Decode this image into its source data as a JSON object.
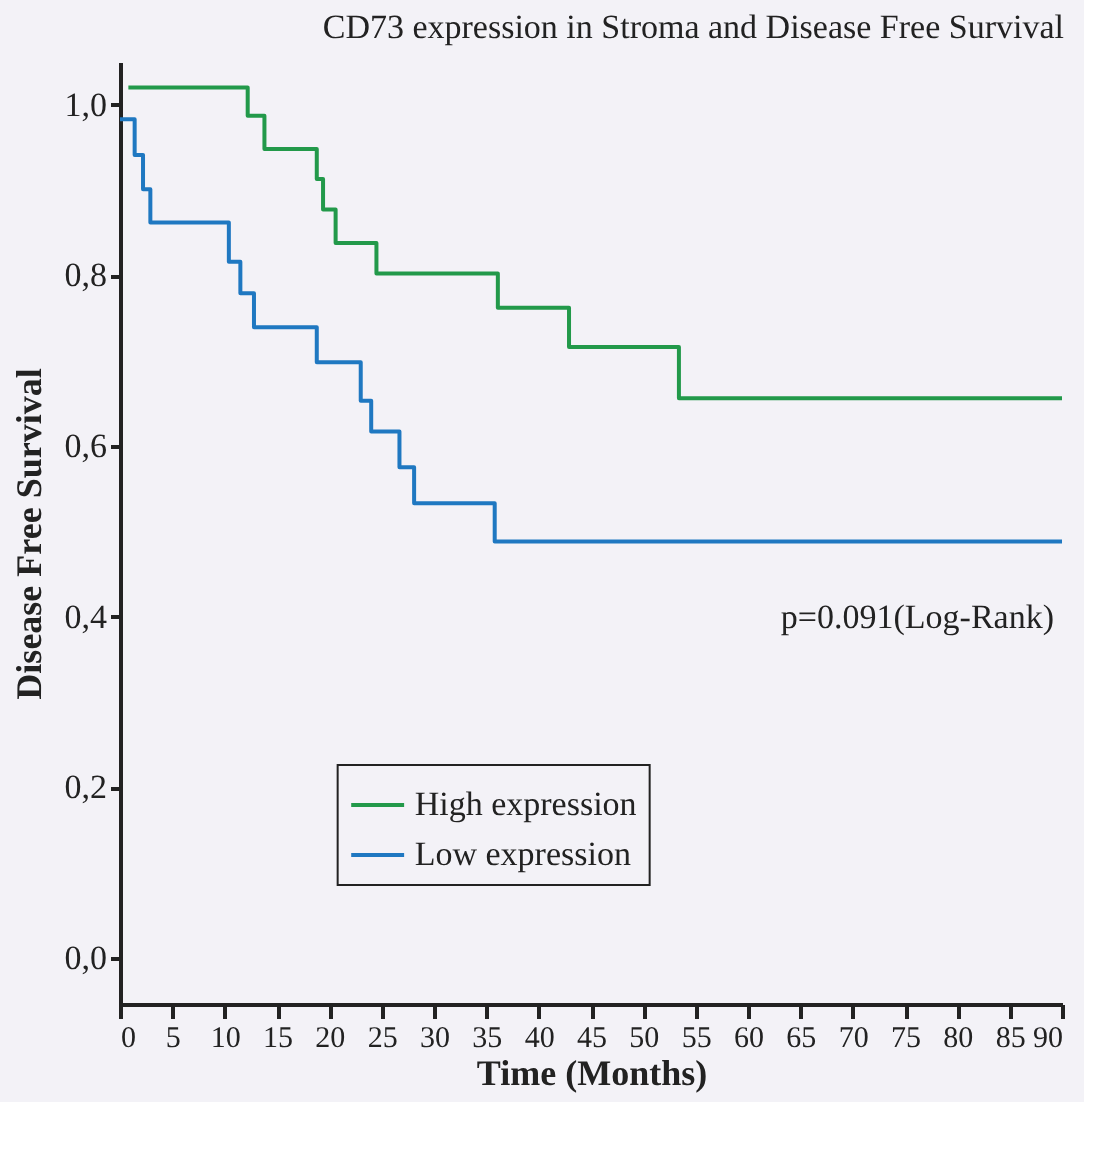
{
  "chart_data": {
    "type": "step",
    "title": "CD73 expression in Stroma and Disease Free Survival",
    "xlabel": "Time (Months)",
    "ylabel": "Disease Free Survival",
    "xlim": [
      0,
      90
    ],
    "xticks": [
      0,
      5,
      10,
      15,
      20,
      25,
      30,
      35,
      40,
      45,
      50,
      55,
      60,
      65,
      70,
      75,
      80,
      85,
      90
    ],
    "ylim": [
      -0.054,
      1.05
    ],
    "yticks": [
      {
        "value": 0,
        "label": "0,0"
      },
      {
        "value": 0.2,
        "label": "0,2"
      },
      {
        "value": 0.4,
        "label": "0,4"
      },
      {
        "value": 0.6,
        "label": "0,6"
      },
      {
        "value": 0.8,
        "label": "0,8"
      },
      {
        "value": 1.0,
        "label": "1,0"
      }
    ],
    "grid": false,
    "legend": "bottom",
    "marker": "none",
    "line_style": "solid",
    "annotations": [
      "p=0.091(Log-Rank)"
    ],
    "series": [
      {
        "name": "High expression",
        "color": "#22994a",
        "x": [
          0.8,
          12.2,
          13.8,
          18.8,
          19.4,
          20.6,
          24.5,
          36.1,
          42.9,
          53.4,
          90
        ],
        "values": [
          1.02,
          0.987,
          0.948,
          0.913,
          0.877,
          0.838,
          0.802,
          0.762,
          0.716,
          0.656,
          0.656
        ]
      },
      {
        "name": "Low expression",
        "color": "#1f78c1",
        "x": [
          0,
          1.4,
          2.2,
          2.9,
          10.4,
          11.5,
          12.8,
          18.8,
          23.0,
          24.0,
          26.7,
          28.1,
          35.8,
          90
        ],
        "values": [
          0.983,
          0.941,
          0.901,
          0.862,
          0.816,
          0.779,
          0.739,
          0.698,
          0.653,
          0.617,
          0.575,
          0.533,
          0.488,
          0.488
        ]
      }
    ]
  }
}
